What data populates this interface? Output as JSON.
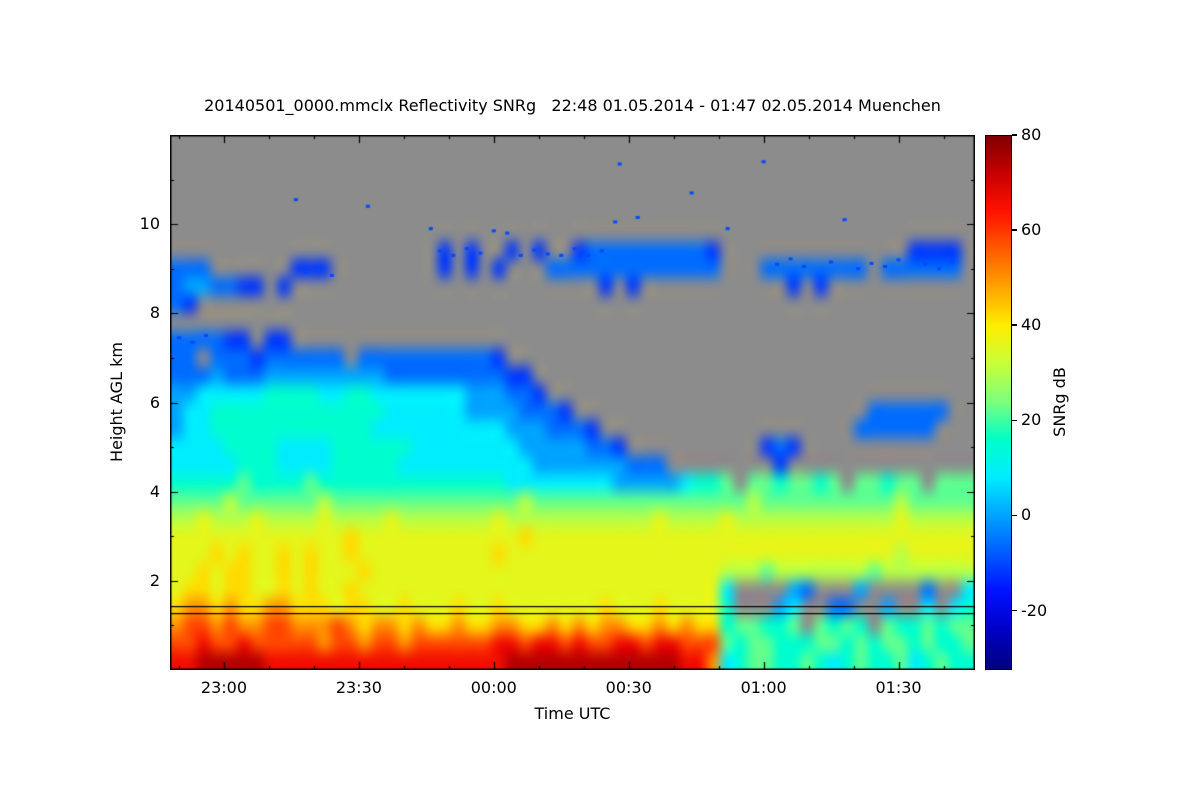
{
  "page": {
    "background": "#FFFFFF",
    "text_color": "#000000"
  },
  "chart_data": {
    "type": "heatmap",
    "title": "20140501_0000.mmclx Reflectivity SNRg   22:48 01.05.2014 - 01:47 02.05.2014 Muenchen",
    "source_file": "20140501_0000.mmclx",
    "quantity": "Reflectivity SNRg",
    "time_range_label": "22:48 01.05.2014 - 01:47 02.05.2014",
    "station": "Muenchen",
    "xlabel": "Time UTC",
    "ylabel": "Height AGL km",
    "colorbar_label": "SNRg dB",
    "x_axis": {
      "start": "22:48",
      "end": "01:47",
      "duration_min": 179,
      "major_ticks": [
        {
          "min": 12,
          "label": "23:00"
        },
        {
          "min": 42,
          "label": "23:30"
        },
        {
          "min": 72,
          "label": "00:00"
        },
        {
          "min": 102,
          "label": "00:30"
        },
        {
          "min": 132,
          "label": "01:00"
        },
        {
          "min": 162,
          "label": "01:30"
        }
      ],
      "minor_ticks_min": [
        2,
        22,
        32,
        52,
        62,
        82,
        92,
        112,
        122,
        142,
        152,
        172
      ]
    },
    "y_axis": {
      "range_km": [
        0,
        12
      ],
      "major_ticks": [
        {
          "km": 2,
          "label": "2"
        },
        {
          "km": 4,
          "label": "4"
        },
        {
          "km": 6,
          "label": "6"
        },
        {
          "km": 8,
          "label": "8"
        },
        {
          "km": 10,
          "label": "10"
        }
      ],
      "minor_ticks_km": [
        1,
        3,
        5,
        7,
        9,
        11
      ]
    },
    "colorbar": {
      "domain_db": [
        -32.5,
        80
      ],
      "ticks": [
        {
          "db": 80,
          "label": "80"
        },
        {
          "db": 60,
          "label": "60"
        },
        {
          "db": 40,
          "label": "40"
        },
        {
          "db": 20,
          "label": "20"
        },
        {
          "db": 0,
          "label": "0"
        },
        {
          "db": -20,
          "label": "-20"
        }
      ],
      "colormap_stops": [
        [
          -32.5,
          "#000080"
        ],
        [
          -24,
          "#0000C8"
        ],
        [
          -16,
          "#0012FF"
        ],
        [
          -8,
          "#005BFF"
        ],
        [
          0,
          "#00A4FF"
        ],
        [
          8,
          "#00EDFF"
        ],
        [
          16,
          "#00FFC8"
        ],
        [
          24,
          "#7DFF7D"
        ],
        [
          32,
          "#C8FF37"
        ],
        [
          40,
          "#FFED00"
        ],
        [
          48,
          "#FFA400"
        ],
        [
          56,
          "#FF5B00"
        ],
        [
          64,
          "#FF1200"
        ],
        [
          72,
          "#C80000"
        ],
        [
          80,
          "#800000"
        ]
      ]
    },
    "no_signal_color": "#8C8C8C",
    "grid": {
      "cols": 60,
      "rows": 30,
      "col_width_min": 3,
      "row_height_km": 0.4,
      "code_values_db": {
        ".": null,
        "a": -12,
        "b": -6,
        "c": 0,
        "d": 8,
        "e": 15,
        "f": 22,
        "g": 30,
        "h": 36,
        "i": 42,
        "j": 50,
        "k": 58,
        "l": 66,
        "m": 74
      },
      "rows_top_to_bottom": [
        [
          "..........",
          "..........",
          "..........",
          "..........",
          "..........",
          ".........."
        ],
        [
          "..........",
          "..........",
          "..........",
          "..........",
          "..........",
          ".........."
        ],
        [
          "..........",
          "..........",
          "..........",
          "..........",
          "..........",
          ".........."
        ],
        [
          "..........",
          "..........",
          "..........",
          "..........",
          "..........",
          ".........."
        ],
        [
          "..........",
          "..........",
          "..........",
          "..........",
          "..........",
          ".........."
        ],
        [
          "..........",
          "..........",
          "..........",
          "..........",
          "..........",
          ".........."
        ],
        [
          "..........",
          "..........",
          "a.a..a.a..",
          "abbbbbbbbb",
          "a.........",
          ".....aaaa."
        ],
        [
          "bbb......a",
          "aa........",
          "a.a.a...bb",
          "bbbbbbbbbb",
          "b...bbbbbb",
          "bb.bbbbbb."
        ],
        [
          "bccbbaa.a.",
          "..........",
          "..........",
          "..a.a.....",
          "......a.a.",
          ".........."
        ],
        [
          "ba........",
          "..........",
          "..........",
          "..........",
          "..........",
          ".........."
        ],
        [
          "..........",
          "..........",
          "..........",
          "..........",
          "..........",
          ".........."
        ],
        [
          "bbbbaa.aa.",
          "..........",
          "..........",
          "..........",
          "..........",
          ".........."
        ],
        [
          "bb.bbbabbb",
          "bbb.bbbbbb",
          "bbbba.....",
          "..........",
          "..........",
          ".........."
        ],
        [
          "bbbcbbbccc",
          "ccccccbbbb",
          "bbbbbaa...",
          "..........",
          "..........",
          ".........."
        ],
        [
          "ccdddddeee",
          "eddeeddddd",
          "ddcccbba..",
          "..........",
          "..........",
          ".........."
        ],
        [
          "cddeeeeeee",
          "eeeeeedddd",
          "ddccccbbba",
          "..........",
          "..........",
          "..bbbbbb.."
        ],
        [
          "cddeeeeeee",
          "eeeeeddddd",
          "dddddcccbb",
          "ba........",
          "..........",
          ".bbbbbb..."
        ],
        [
          "ddddeeeedd",
          "ddeeeeeedd",
          "ddddddcccc",
          "cbba......",
          "....aba...",
          ".........."
        ],
        [
          "dddddeeedd",
          "ddeeeeeddd",
          "dddddddccc",
          "ccccbbb...",
          ".....a....",
          ".........."
        ],
        [
          "eeeeefeeee",
          "feeeeeeeee",
          "eeeeeddddd",
          "dddcccccde",
          "ef.ffeffef",
          ".ffeff.fff"
        ],
        [
          "ffffgfffff",
          "fgffffffff",
          "ffffffgfff",
          "ffffffffff",
          "fffgffffff",
          "ffffgfffff"
        ],
        [
          "gghggghggg",
          "ghgggghggg",
          "gggghggggg",
          "gggggghggg",
          "ghgggggggg",
          "gggghggggg"
        ],
        [
          "hhhhhhhhhh",
          "hhhihhhhhh",
          "hhhhhhihhh",
          "hhhhhhhhhh",
          "hhhhhhhhhh",
          "hhhhhhhhhh"
        ],
        [
          "hhhihihhih",
          "ihhihhhhhh",
          "hhhhihhhhh",
          "hhhhhhhhhh",
          "hhhhhhhhhh",
          "hhhhghhhhh"
        ],
        [
          "hhihiihhih",
          "ihhhihhhhh",
          "hhhhhhhhhh",
          "hhhhhhhhhh",
          "hgggfggggg",
          "ggfggggggg"
        ],
        [
          "hiihiihhih",
          "ihhihhhhhh",
          "hhhhhhhhhh",
          "hhhhhhhhhh",
          "hd....cb..",
          ".c....b..d"
        ],
        [
          "ijjijiijji",
          "iihiihhihh",
          "hihhihhhhh",
          "hhihhhihhh",
          "he...cd..b",
          "b..c..d.de"
        ],
        [
          "jkkjkjjkkj",
          "jjkjijjiji",
          "ijiijjiiji",
          "jijjiijiji",
          "ieffeef.fe",
          "fe.feefeff"
        ],
        [
          "kklkklkkkk",
          "kjkkjkkjkk",
          "kkkkllkllk",
          "lkkllkllkk",
          "kfeffeeeff",
          "efeffefeef"
        ],
        [
          "llmmmmmlll",
          "llllllllll",
          "lllllmmmmm",
          "mmmmmmmmll",
          "jdeffeefed",
          "efeefdefee"
        ]
      ]
    },
    "specks": {
      "value_db": -10,
      "points_min_km": [
        [
          28,
          10.55
        ],
        [
          44,
          10.4
        ],
        [
          100,
          11.35
        ],
        [
          132,
          11.4
        ],
        [
          116,
          10.7
        ],
        [
          104,
          10.15
        ],
        [
          58,
          9.9
        ],
        [
          72,
          9.85
        ],
        [
          75,
          9.8
        ],
        [
          99,
          10.05
        ],
        [
          124,
          9.9
        ],
        [
          150,
          10.1
        ],
        [
          2,
          7.45
        ],
        [
          5,
          7.35
        ],
        [
          8,
          7.5
        ],
        [
          30,
          8.92
        ],
        [
          33,
          8.97
        ],
        [
          36,
          8.85
        ],
        [
          60,
          9.4
        ],
        [
          63,
          9.3
        ],
        [
          66,
          9.45
        ],
        [
          69,
          9.35
        ],
        [
          78,
          9.3
        ],
        [
          81,
          9.42
        ],
        [
          84,
          9.33
        ],
        [
          87,
          9.3
        ],
        [
          90,
          9.45
        ],
        [
          93,
          9.3
        ],
        [
          96,
          9.4
        ],
        [
          135,
          9.1
        ],
        [
          138,
          9.22
        ],
        [
          141,
          9.05
        ],
        [
          147,
          9.15
        ],
        [
          153,
          9.0
        ],
        [
          156,
          9.12
        ],
        [
          159,
          9.05
        ],
        [
          162,
          9.2
        ],
        [
          168,
          9.1
        ],
        [
          171,
          9.0
        ],
        [
          174,
          9.15
        ]
      ]
    },
    "overlay_lines": {
      "heights_km": [
        1.28,
        1.44
      ],
      "color": "#000000"
    }
  }
}
